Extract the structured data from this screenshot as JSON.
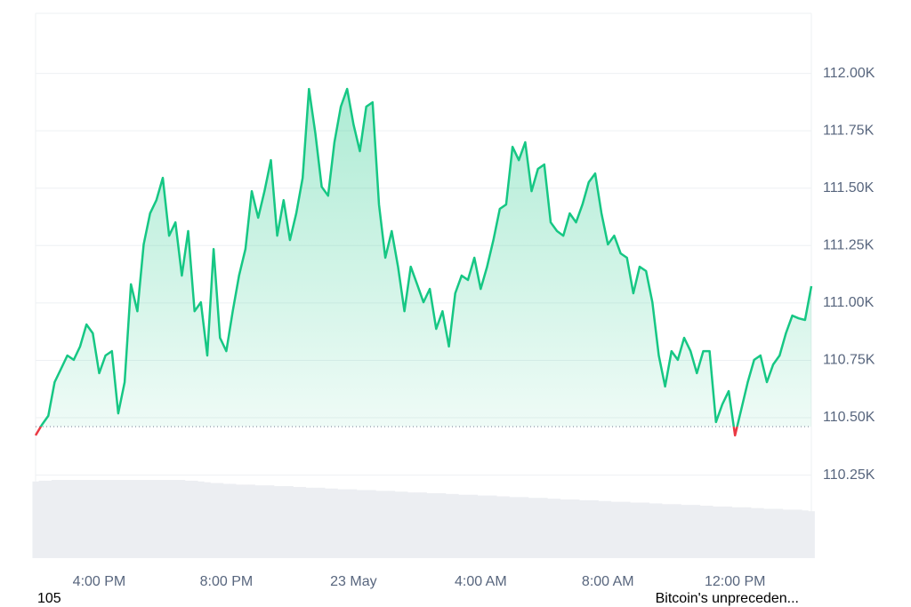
{
  "chart_data": {
    "type": "line",
    "categories": [
      null,
      null,
      null,
      null,
      null,
      null,
      null,
      null,
      null,
      null,
      "4:00 PM",
      null,
      null,
      null,
      null,
      null,
      null,
      null,
      null,
      null,
      null,
      null,
      null,
      null,
      null,
      null,
      null,
      null,
      null,
      null,
      "8:00 PM",
      null,
      null,
      null,
      null,
      null,
      null,
      null,
      null,
      null,
      null,
      null,
      null,
      null,
      null,
      null,
      null,
      null,
      null,
      null,
      "23 May",
      null,
      null,
      null,
      null,
      null,
      null,
      null,
      null,
      null,
      null,
      null,
      null,
      null,
      null,
      null,
      null,
      null,
      null,
      null,
      "4:00 AM",
      null,
      null,
      null,
      null,
      null,
      null,
      null,
      null,
      null,
      null,
      null,
      null,
      null,
      null,
      null,
      null,
      null,
      null,
      null,
      "8:00 AM",
      null,
      null,
      null,
      null,
      null,
      null,
      null,
      null,
      null,
      null,
      null,
      null,
      null,
      null,
      null,
      null,
      null,
      null,
      null,
      "12:00 PM",
      null,
      null,
      null,
      null,
      null,
      null,
      null,
      null,
      null,
      null,
      null,
      null
    ],
    "values": [
      110423,
      110469,
      110508,
      110655,
      110713,
      110771,
      110752,
      110810,
      110906,
      110868,
      110694,
      110771,
      110790,
      110519,
      110655,
      111081,
      110964,
      111255,
      111390,
      111448,
      111545,
      111293,
      111351,
      111119,
      111313,
      110964,
      111003,
      110771,
      111235,
      110848,
      110790,
      110964,
      111119,
      111235,
      111487,
      111371,
      111487,
      111622,
      111293,
      111448,
      111274,
      111390,
      111545,
      111932,
      111738,
      111506,
      111467,
      111700,
      111855,
      111932,
      111777,
      111661,
      111855,
      111874,
      111429,
      111197,
      111313,
      111158,
      110964,
      111158,
      111081,
      111003,
      111061,
      110887,
      110964,
      110810,
      111042,
      111119,
      111100,
      111197,
      111061,
      111158,
      111274,
      111410,
      111429,
      111680,
      111622,
      111700,
      111487,
      111584,
      111603,
      111351,
      111313,
      111293,
      111390,
      111351,
      111429,
      111526,
      111564,
      111390,
      111255,
      111293,
      111216,
      111197,
      111042,
      111158,
      111139,
      111003,
      110771,
      110636,
      110790,
      110752,
      110848,
      110790,
      110694,
      110790,
      110790,
      110481,
      110558,
      110616,
      110423,
      110539,
      110655,
      110752,
      110771,
      110655,
      110732,
      110771,
      110868,
      110945,
      110933,
      110926,
      111073
    ],
    "reference_value": 110461,
    "color": "#16c784",
    "negative_color": "#ea3943",
    "volume": [
      98,
      99,
      99,
      100,
      100,
      100,
      100,
      100,
      100,
      100,
      100,
      100,
      100,
      100,
      100,
      100,
      100,
      100,
      100,
      100,
      100,
      100,
      100,
      100,
      99,
      99,
      98,
      97,
      96,
      96,
      95,
      95,
      94,
      94,
      94,
      93,
      93,
      93,
      92,
      92,
      92,
      91,
      91,
      90,
      90,
      90,
      89,
      89,
      88,
      88,
      88,
      87,
      87,
      87,
      86,
      86,
      86,
      85,
      85,
      84,
      84,
      84,
      83,
      83,
      83,
      82,
      82,
      81,
      81,
      81,
      80,
      80,
      80,
      79,
      79,
      78,
      78,
      78,
      77,
      77,
      77,
      76,
      76,
      75,
      75,
      75,
      74,
      74,
      74,
      73,
      73,
      72,
      72,
      72,
      71,
      71,
      71,
      70,
      70,
      69,
      69,
      69,
      68,
      68,
      68,
      67,
      67,
      66,
      66,
      66,
      65,
      65,
      65,
      64,
      64,
      63,
      63,
      63,
      62,
      62,
      62,
      61,
      60
    ],
    "ylim": [
      110200,
      112250
    ],
    "yticks": [
      {
        "value": 110250,
        "label": "110.25K"
      },
      {
        "value": 110500,
        "label": "110.50K"
      },
      {
        "value": 110750,
        "label": "110.75K"
      },
      {
        "value": 111000,
        "label": "111.00K"
      },
      {
        "value": 111250,
        "label": "111.25K"
      },
      {
        "value": 111500,
        "label": "111.50K"
      },
      {
        "value": 111750,
        "label": "111.75K"
      },
      {
        "value": 112000,
        "label": "112.00K"
      }
    ],
    "grid": true,
    "footer_left": "105",
    "footer_right": "Bitcoin's unpreceden..."
  }
}
